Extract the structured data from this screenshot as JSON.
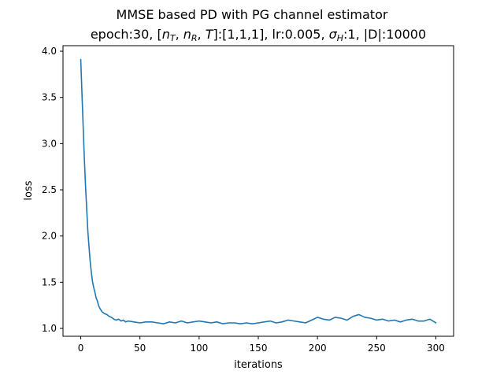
{
  "chart_data": {
    "type": "line",
    "title_line1": "MMSE based PD with PG channel estimator",
    "title_line2": "epoch:30, [n_T, n_R, T]:[1,1,1], lr:0.005, σ_H:1, |D|:10000",
    "xlabel": "iterations",
    "ylabel": "loss",
    "xlim": [
      -15,
      315
    ],
    "ylim": [
      0.915,
      4.06
    ],
    "xticks": [
      0,
      50,
      100,
      150,
      200,
      250,
      300
    ],
    "yticks": [
      1.0,
      1.5,
      2.0,
      2.5,
      3.0,
      3.5,
      4.0
    ],
    "xtick_labels": [
      "0",
      "50",
      "100",
      "150",
      "200",
      "250",
      "300"
    ],
    "ytick_labels": [
      "1.0",
      "1.5",
      "2.0",
      "2.5",
      "3.0",
      "3.5",
      "4.0"
    ],
    "grid": false,
    "series": [
      {
        "color": "#1f77b4",
        "x": [
          0,
          1,
          2,
          3,
          4,
          5,
          6,
          7,
          8,
          9,
          10,
          11,
          12,
          13,
          14,
          15,
          16,
          17,
          18,
          19,
          20,
          22,
          24,
          26,
          28,
          30,
          32,
          34,
          36,
          38,
          40,
          45,
          50,
          55,
          60,
          65,
          70,
          75,
          80,
          85,
          90,
          95,
          100,
          105,
          110,
          115,
          120,
          125,
          130,
          135,
          140,
          145,
          150,
          155,
          160,
          165,
          170,
          175,
          180,
          185,
          190,
          195,
          200,
          205,
          210,
          215,
          220,
          225,
          230,
          235,
          240,
          245,
          250,
          255,
          260,
          265,
          270,
          275,
          280,
          285,
          290,
          295,
          300
        ],
        "y": [
          3.91,
          3.55,
          3.2,
          2.85,
          2.55,
          2.3,
          2.05,
          1.88,
          1.72,
          1.6,
          1.5,
          1.44,
          1.39,
          1.33,
          1.3,
          1.25,
          1.22,
          1.2,
          1.18,
          1.17,
          1.16,
          1.15,
          1.13,
          1.12,
          1.1,
          1.09,
          1.1,
          1.08,
          1.09,
          1.07,
          1.08,
          1.07,
          1.06,
          1.07,
          1.07,
          1.06,
          1.05,
          1.07,
          1.06,
          1.08,
          1.06,
          1.07,
          1.08,
          1.07,
          1.06,
          1.07,
          1.05,
          1.06,
          1.06,
          1.05,
          1.06,
          1.05,
          1.06,
          1.07,
          1.08,
          1.06,
          1.07,
          1.09,
          1.08,
          1.07,
          1.06,
          1.09,
          1.12,
          1.1,
          1.09,
          1.12,
          1.11,
          1.09,
          1.13,
          1.15,
          1.12,
          1.11,
          1.09,
          1.1,
          1.08,
          1.09,
          1.07,
          1.09,
          1.1,
          1.08,
          1.08,
          1.1,
          1.06
        ]
      }
    ]
  }
}
